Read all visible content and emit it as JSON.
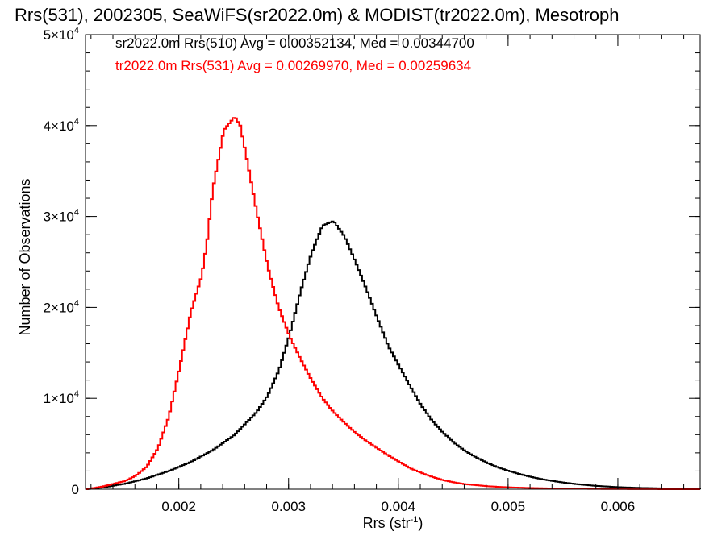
{
  "chart_data": {
    "type": "line",
    "title": "Rrs(531), 2002305, SeaWiFS(sr2022.0m) & MODIST(tr2022.0m), Mesotroph",
    "xlabel": "Rrs (str",
    "xlabel_sup": "-1",
    "xlabel_close": ")",
    "ylabel": "Number of Observations",
    "xlim": [
      0.00115,
      0.00675
    ],
    "ylim": [
      0,
      50000
    ],
    "x_ticks": [
      {
        "value": 0.002,
        "label": "0.002"
      },
      {
        "value": 0.003,
        "label": "0.003"
      },
      {
        "value": 0.004,
        "label": "0.004"
      },
      {
        "value": 0.005,
        "label": "0.005"
      },
      {
        "value": 0.006,
        "label": "0.006"
      }
    ],
    "y_ticks": [
      {
        "value": 0,
        "base": "0",
        "exp": ""
      },
      {
        "value": 10000,
        "base": "1×10",
        "exp": "4"
      },
      {
        "value": 20000,
        "base": "2×10",
        "exp": "4"
      },
      {
        "value": 30000,
        "base": "3×10",
        "exp": "4"
      },
      {
        "value": 40000,
        "base": "4×10",
        "exp": "4"
      },
      {
        "value": 50000,
        "base": "5×10",
        "exp": "4"
      }
    ],
    "bin_width": 2e-05,
    "grid": false,
    "legend_placement": "top-left",
    "series": [
      {
        "name": "sr2022.0m Rrs(510)",
        "label": "sr2022.0m Rrs(510) Avg = 0.00352134, Med = 0.00344700",
        "color": "#000000",
        "x": [
          0.00115,
          0.0013,
          0.0015,
          0.0017,
          0.0019,
          0.0021,
          0.0023,
          0.0025,
          0.0027,
          0.0028,
          0.0029,
          0.003,
          0.0031,
          0.0032,
          0.0033,
          0.0034,
          0.0035,
          0.0036,
          0.0037,
          0.0038,
          0.0039,
          0.004,
          0.0041,
          0.0042,
          0.0043,
          0.0044,
          0.0045,
          0.0046,
          0.0047,
          0.0048,
          0.0049,
          0.005,
          0.0051,
          0.0052,
          0.0053,
          0.0054,
          0.0055,
          0.0056,
          0.0057,
          0.0058,
          0.006,
          0.0062,
          0.0064,
          0.0066,
          0.00675
        ],
        "y": [
          0,
          200,
          600,
          1200,
          2000,
          3000,
          4300,
          6000,
          8500,
          10300,
          13000,
          17000,
          21800,
          26000,
          29000,
          29500,
          27800,
          25000,
          22000,
          18800,
          15700,
          13500,
          11300,
          9200,
          7500,
          6200,
          5100,
          4200,
          3500,
          2900,
          2400,
          2000,
          1650,
          1350,
          1100,
          900,
          720,
          580,
          460,
          360,
          220,
          140,
          90,
          50,
          30
        ]
      },
      {
        "name": "tr2022.0m Rrs(531)",
        "label": "tr2022.0m Rrs(531) Avg = 0.00269970, Med = 0.00259634",
        "color": "#ff0000",
        "x": [
          0.00115,
          0.0013,
          0.0015,
          0.0016,
          0.0017,
          0.0018,
          0.0019,
          0.002,
          0.0021,
          0.0022,
          0.00225,
          0.0023,
          0.0024,
          0.0025,
          0.00255,
          0.0026,
          0.0027,
          0.0028,
          0.0029,
          0.003,
          0.0031,
          0.0032,
          0.0033,
          0.0034,
          0.0035,
          0.0036,
          0.0037,
          0.0038,
          0.0039,
          0.004,
          0.0041,
          0.0042,
          0.0043,
          0.0044,
          0.0045,
          0.0046,
          0.0048,
          0.005,
          0.0052,
          0.0054,
          0.0056,
          0.0058,
          0.006,
          0.0062,
          0.0064,
          0.00675
        ],
        "y": [
          0,
          300,
          900,
          1500,
          2500,
          4500,
          8000,
          13500,
          19500,
          23500,
          27500,
          33000,
          39500,
          41000,
          40000,
          37000,
          30500,
          24500,
          20000,
          16800,
          14300,
          12000,
          10000,
          8500,
          7300,
          6200,
          5300,
          4500,
          3700,
          3000,
          2300,
          1800,
          1350,
          1000,
          750,
          550,
          330,
          200,
          130,
          80,
          50,
          30,
          20,
          10,
          5,
          0
        ]
      }
    ]
  }
}
